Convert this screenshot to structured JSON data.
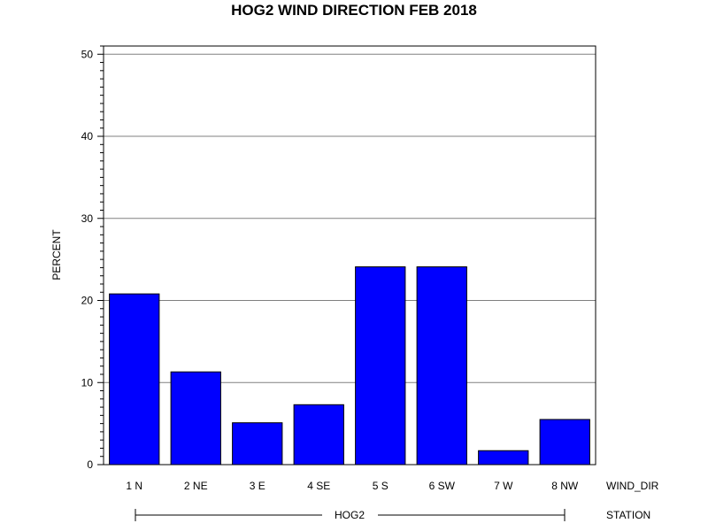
{
  "chart_data": {
    "type": "bar",
    "title": "HOG2 WIND DIRECTION FEB 2018",
    "ylabel": "PERCENT",
    "category_axis_label": "WIND_DIR",
    "group_axis_label": "STATION",
    "group_label": "HOG2",
    "categories": [
      "1 N",
      "2 NE",
      "3 E",
      "4 SE",
      "5 S",
      "6 SW",
      "7 W",
      "8 NW"
    ],
    "values": [
      20.8,
      11.3,
      5.1,
      7.3,
      24.1,
      24.1,
      1.7,
      5.5
    ],
    "ylim": [
      0,
      51
    ],
    "yticks": [
      0,
      10,
      20,
      30,
      40,
      50
    ],
    "ytick_labels": [
      "0",
      "10",
      "20",
      "30",
      "40",
      "50"
    ],
    "grid": true,
    "bar_color": "#0000ff"
  }
}
